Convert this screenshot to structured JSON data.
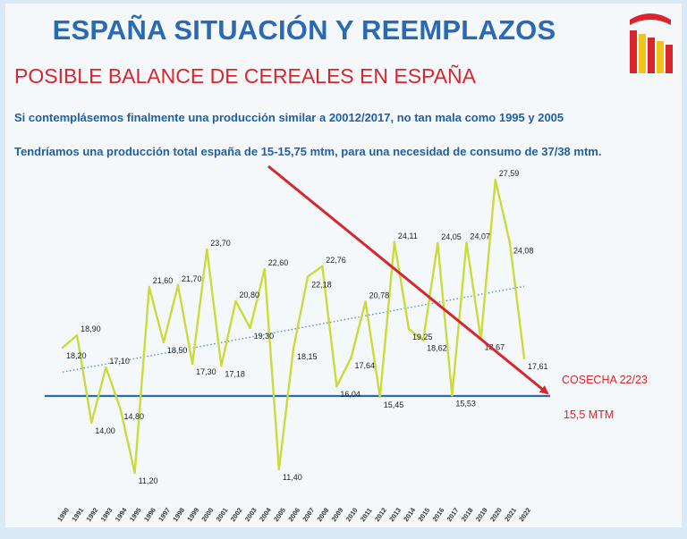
{
  "header": {
    "title": "ESPAÑA SITUACIÓN Y REEMPLAZOS",
    "subtitle": "POSIBLE BALANCE DE CEREALES EN ESPAÑA",
    "note1": "Si contemplásemos finalmente una producción similar a 20012/2017, no tan mala como 1995 y 2005",
    "note2": "Tendríamos una producción total españa de 15-15,75 mtm, para una necesidad de consumo de 37/38 mtm."
  },
  "annotations": {
    "harvest": "COSECHA 22/23",
    "threshold": "15,5 MTM"
  },
  "colors": {
    "title": "#2a69b4",
    "accent_red": "#d8262c",
    "series_line": "#c8dc3c",
    "trend_line": "#5b8fc9",
    "threshold_line": "#2f6aa8"
  },
  "chart_data": {
    "type": "line",
    "title": "",
    "xlabel": "",
    "ylabel": "",
    "ylim": [
      11,
      27.6
    ],
    "x": [
      "1990",
      "1991",
      "1992",
      "1993",
      "1994",
      "1995",
      "1996",
      "1997",
      "1998",
      "1999",
      "2000",
      "2001",
      "2002",
      "2003",
      "2004",
      "2005",
      "2006",
      "2007",
      "2008",
      "2009",
      "2010",
      "2011",
      "2012",
      "2013",
      "2014",
      "2015",
      "2016",
      "2017",
      "2018",
      "2019",
      "2020",
      "2021",
      "2022"
    ],
    "series": [
      {
        "name": "",
        "values": [
          18.2,
          18.9,
          14.0,
          17.1,
          14.8,
          11.2,
          21.6,
          18.5,
          21.7,
          17.3,
          23.7,
          17.18,
          20.8,
          19.3,
          22.6,
          11.4,
          18.15,
          22.18,
          22.76,
          16.04,
          17.64,
          20.78,
          15.45,
          24.11,
          19.25,
          18.62,
          24.05,
          15.53,
          24.07,
          18.67,
          27.59,
          24.08,
          17.61
        ],
        "labels": [
          "18,20",
          "18,90",
          "14,00",
          "17,10",
          "14,80",
          "11,20",
          "21,60",
          "18,50",
          "21,70",
          "17,30",
          "23,70",
          "17,18",
          "20,80",
          "19,30",
          "22,60",
          "11,40",
          "18,15",
          "22,18",
          "22,76",
          "16,04",
          "17,64",
          "20,78",
          "15,45",
          "24,11",
          "19,25",
          "18,62",
          "24,05",
          "15,53",
          "24,07",
          "18,67",
          "27,59",
          "24,08",
          "17,61"
        ]
      }
    ],
    "trend": {
      "type": "linear",
      "style": "dotted"
    },
    "threshold": {
      "value": 15.5,
      "label": "15,5 MTM"
    },
    "grid": false
  }
}
